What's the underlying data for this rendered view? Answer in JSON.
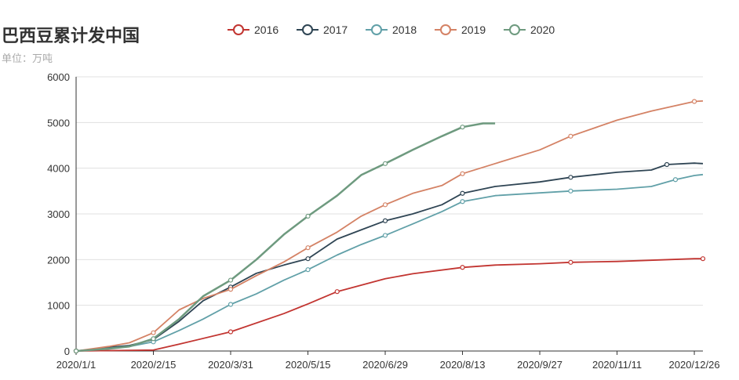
{
  "chart_data": {
    "type": "line",
    "title": "巴西豆累计发中国",
    "subtitle": "单位：万吨",
    "x_ticks": [
      "2020/1/1",
      "2020/2/15",
      "2020/3/31",
      "2020/5/15",
      "2020/6/29",
      "2020/8/13",
      "2020/9/27",
      "2020/11/11",
      "2020/12/26"
    ],
    "y_ticks": [
      0,
      1000,
      2000,
      3000,
      4000,
      5000,
      6000
    ],
    "ylim": [
      0,
      6000
    ],
    "legend_position": "top-center",
    "grid": "horizontal",
    "series": [
      {
        "name": "2016",
        "color": "#c23531",
        "x": [
          "2020-01-01",
          "2020-02-15",
          "2020-03-01",
          "2020-03-31",
          "2020-05-01",
          "2020-05-15",
          "2020-06-01",
          "2020-06-29",
          "2020-07-15",
          "2020-08-13",
          "2020-09-01",
          "2020-09-27",
          "2020-10-15",
          "2020-11-11",
          "2020-12-26",
          "2020-12-31"
        ],
        "values": [
          0,
          20,
          150,
          420,
          820,
          1030,
          1300,
          1580,
          1690,
          1830,
          1880,
          1910,
          1940,
          1960,
          2020,
          2020
        ]
      },
      {
        "name": "2017",
        "color": "#2f4554",
        "x": [
          "2020-01-01",
          "2020-01-20",
          "2020-02-01",
          "2020-02-15",
          "2020-03-01",
          "2020-03-15",
          "2020-03-31",
          "2020-04-15",
          "2020-05-01",
          "2020-05-15",
          "2020-06-01",
          "2020-06-15",
          "2020-06-29",
          "2020-07-15",
          "2020-08-01",
          "2020-08-13",
          "2020-09-01",
          "2020-09-27",
          "2020-10-15",
          "2020-11-11",
          "2020-12-01",
          "2020-12-10",
          "2020-12-26",
          "2020-12-31"
        ],
        "values": [
          0,
          80,
          120,
          250,
          650,
          1100,
          1400,
          1700,
          1880,
          2020,
          2450,
          2650,
          2850,
          3000,
          3200,
          3450,
          3600,
          3700,
          3800,
          3910,
          3960,
          4080,
          4110,
          4100
        ]
      },
      {
        "name": "2018",
        "color": "#61a0a8",
        "x": [
          "2020-01-01",
          "2020-01-20",
          "2020-02-01",
          "2020-02-15",
          "2020-03-01",
          "2020-03-15",
          "2020-03-31",
          "2020-04-15",
          "2020-05-01",
          "2020-05-15",
          "2020-06-01",
          "2020-06-15",
          "2020-06-29",
          "2020-07-15",
          "2020-08-01",
          "2020-08-13",
          "2020-09-01",
          "2020-09-27",
          "2020-10-15",
          "2020-11-11",
          "2020-12-01",
          "2020-12-15",
          "2020-12-26",
          "2020-12-31"
        ],
        "values": [
          0,
          60,
          100,
          200,
          450,
          700,
          1020,
          1250,
          1550,
          1780,
          2100,
          2330,
          2530,
          2780,
          3050,
          3270,
          3400,
          3460,
          3500,
          3540,
          3600,
          3750,
          3840,
          3860
        ]
      },
      {
        "name": "2019",
        "color": "#d48265",
        "x": [
          "2020-01-01",
          "2020-01-20",
          "2020-02-01",
          "2020-02-15",
          "2020-03-01",
          "2020-03-15",
          "2020-03-31",
          "2020-04-15",
          "2020-05-01",
          "2020-05-15",
          "2020-06-01",
          "2020-06-15",
          "2020-06-29",
          "2020-07-15",
          "2020-08-01",
          "2020-08-13",
          "2020-09-01",
          "2020-09-27",
          "2020-10-15",
          "2020-11-11",
          "2020-12-01",
          "2020-12-26",
          "2020-12-31"
        ],
        "values": [
          0,
          100,
          180,
          400,
          900,
          1150,
          1350,
          1650,
          1950,
          2260,
          2600,
          2950,
          3200,
          3450,
          3620,
          3880,
          4100,
          4400,
          4700,
          5050,
          5250,
          5460,
          5470
        ]
      },
      {
        "name": "2020",
        "color": "#6e9a7f",
        "x": [
          "2020-01-01",
          "2020-01-20",
          "2020-02-01",
          "2020-02-15",
          "2020-03-01",
          "2020-03-15",
          "2020-03-31",
          "2020-04-15",
          "2020-05-01",
          "2020-05-15",
          "2020-06-01",
          "2020-06-15",
          "2020-06-29",
          "2020-07-15",
          "2020-08-01",
          "2020-08-13",
          "2020-08-25",
          "2020-09-01"
        ],
        "values": [
          0,
          50,
          100,
          270,
          700,
          1200,
          1550,
          2000,
          2550,
          2950,
          3400,
          3850,
          4100,
          4400,
          4700,
          4900,
          4980,
          4980
        ]
      }
    ]
  }
}
